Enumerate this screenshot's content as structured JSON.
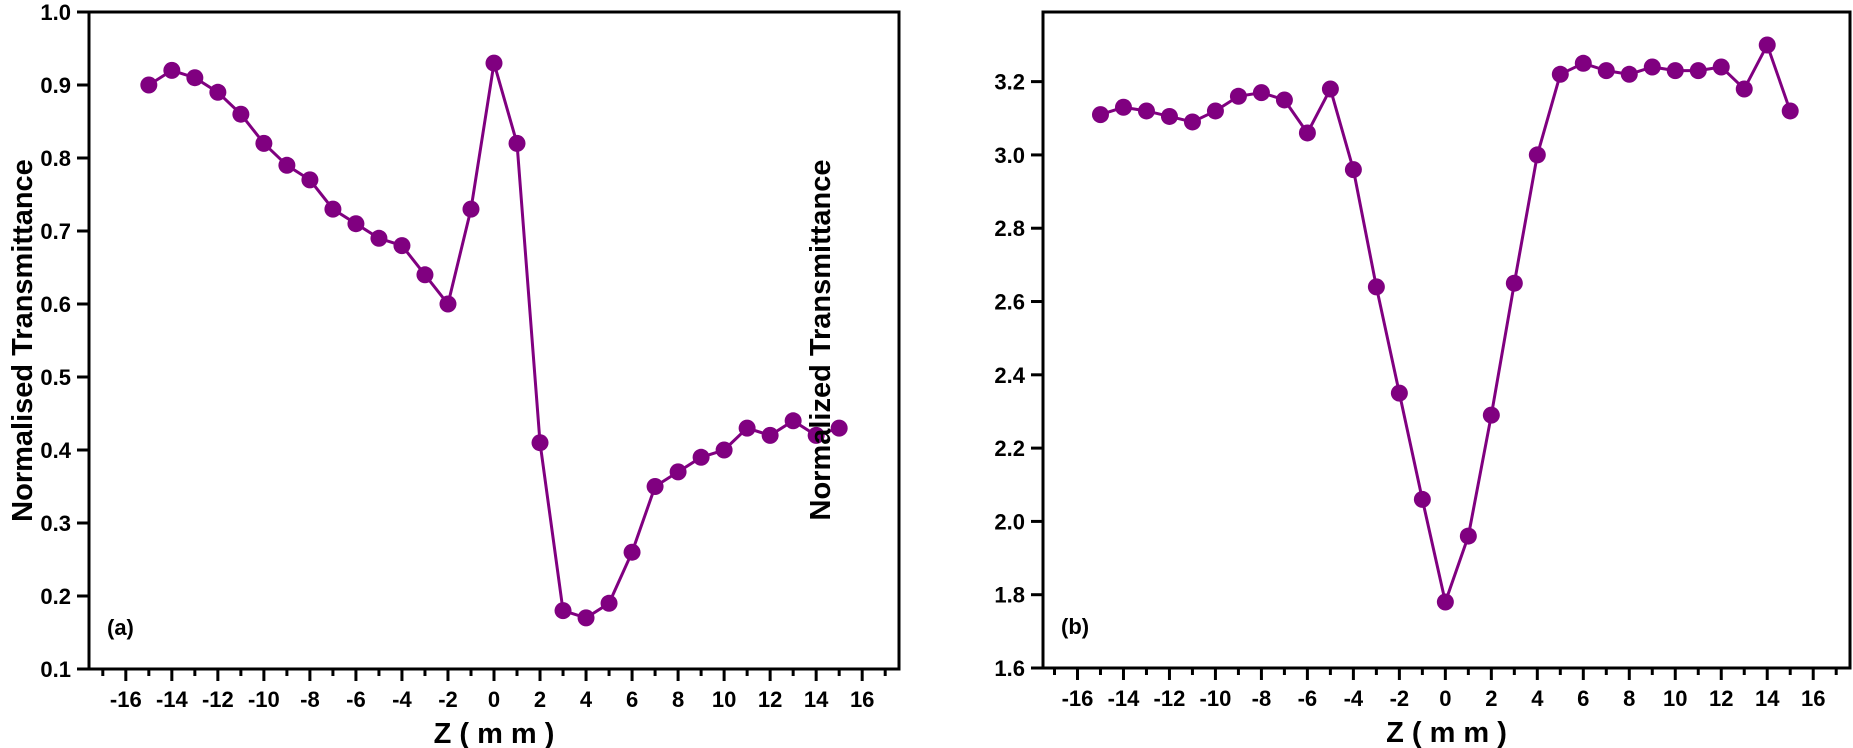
{
  "chart_data": [
    {
      "type": "line",
      "panel_label": "(a)",
      "xlabel": "Z ( m m )",
      "ylabel": "Normalised Transmittance",
      "xlim": [
        -17.6,
        17.6
      ],
      "ylim": [
        0.1,
        1.0
      ],
      "xticks": [
        -16,
        -14,
        -12,
        -10,
        -8,
        -6,
        -4,
        -2,
        0,
        2,
        4,
        6,
        8,
        10,
        12,
        14,
        16
      ],
      "yticks": [
        "0.1",
        "0.2",
        "0.3",
        "0.4",
        "0.5",
        "0.6",
        "0.7",
        "0.8",
        "0.9",
        "1.0"
      ],
      "grid": false,
      "color": "#800080",
      "marker": "circle",
      "x": [
        -15,
        -14,
        -13,
        -12,
        -11,
        -10,
        -9,
        -8,
        -7,
        -6,
        -5,
        -4,
        -3,
        -2,
        -1,
        0,
        1,
        2,
        3,
        4,
        5,
        6,
        7,
        8,
        9,
        10,
        11,
        12,
        13,
        14,
        15
      ],
      "y": [
        0.9,
        0.92,
        0.91,
        0.89,
        0.86,
        0.82,
        0.79,
        0.77,
        0.73,
        0.71,
        0.69,
        0.68,
        0.64,
        0.6,
        0.73,
        0.93,
        0.82,
        0.41,
        0.18,
        0.17,
        0.19,
        0.26,
        0.35,
        0.37,
        0.39,
        0.4,
        0.43,
        0.42,
        0.44,
        0.42,
        0.43
      ]
    },
    {
      "type": "line",
      "panel_label": "(b)",
      "xlabel": "Z ( m m )",
      "ylabel": "Normalized Transmittance",
      "xlim": [
        -17.5,
        17.6
      ],
      "ylim": [
        1.6,
        3.39
      ],
      "xticks": [
        -16,
        -14,
        -12,
        -10,
        -8,
        -6,
        -4,
        -2,
        0,
        2,
        4,
        6,
        8,
        10,
        12,
        14,
        16
      ],
      "yticks": [
        "1.6",
        "1.8",
        "2.0",
        "2.2",
        "2.4",
        "2.6",
        "2.8",
        "3.0",
        "3.2"
      ],
      "grid": false,
      "color": "#800080",
      "marker": "circle",
      "x": [
        -15,
        -14,
        -13,
        -12,
        -11,
        -10,
        -9,
        -8,
        -7,
        -6,
        -5,
        -4,
        -3,
        -2,
        -1,
        0,
        1,
        2,
        3,
        4,
        5,
        6,
        7,
        8,
        9,
        10,
        11,
        12,
        13,
        14,
        15
      ],
      "y": [
        3.11,
        3.13,
        3.12,
        3.105,
        3.09,
        3.12,
        3.16,
        3.17,
        3.15,
        3.06,
        3.18,
        2.96,
        2.64,
        2.35,
        2.06,
        1.78,
        1.96,
        2.29,
        2.65,
        3.0,
        3.22,
        3.25,
        3.23,
        3.22,
        3.24,
        3.23,
        3.23,
        3.24,
        3.18,
        3.3,
        3.12
      ]
    }
  ]
}
